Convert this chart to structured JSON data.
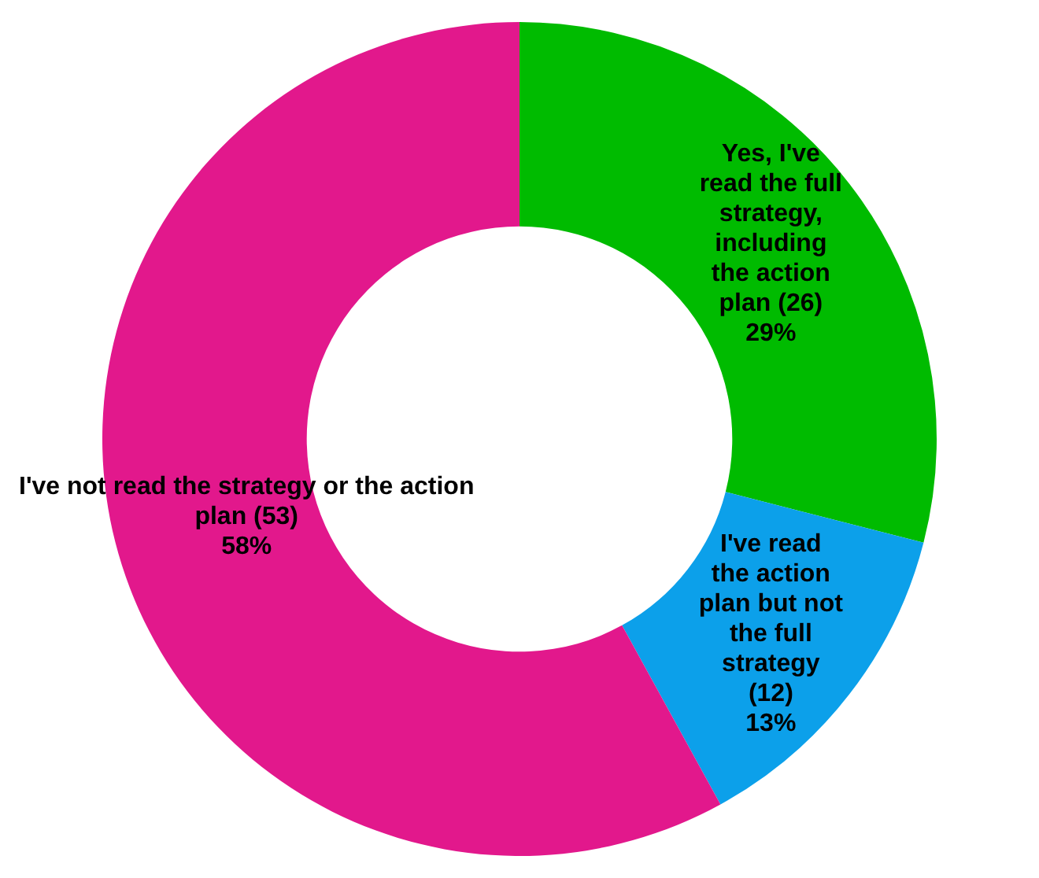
{
  "chart_data": {
    "type": "donut",
    "categories": [
      "Yes, I've read the full strategy, including the action plan (26)",
      "I've read the action plan but not the full strategy (12)",
      "I've not read the strategy or the action plan (53)"
    ],
    "values": [
      29,
      13,
      58
    ],
    "colors": [
      "#00bb00",
      "#0ca0ea",
      "#e2188c"
    ],
    "value_labels": [
      "29%",
      "13%",
      "58%"
    ],
    "legend": false
  }
}
